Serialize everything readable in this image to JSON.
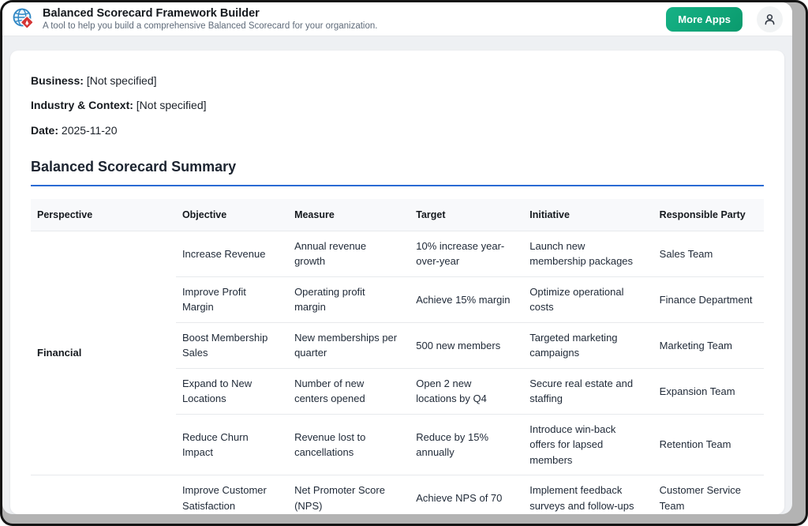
{
  "header": {
    "title": "Balanced Scorecard Framework Builder",
    "subtitle": "A tool to help you build a comprehensive Balanced Scorecard for your organization.",
    "more_apps_label": "More Apps"
  },
  "meta": {
    "business_label": "Business:",
    "business_value": "[Not specified]",
    "industry_label": "Industry & Context:",
    "industry_value": "[Not specified]",
    "date_label": "Date:",
    "date_value": "2025-11-20"
  },
  "summary": {
    "heading": "Balanced Scorecard Summary",
    "accent_color": "#2a6bd4"
  },
  "table": {
    "columns": [
      "Perspective",
      "Objective",
      "Measure",
      "Target",
      "Initiative",
      "Responsible Party"
    ],
    "groups": [
      {
        "perspective": "Financial",
        "rows": [
          [
            "Increase Revenue",
            "Annual revenue growth",
            "10% increase year-over-year",
            "Launch new membership packages",
            "Sales Team"
          ],
          [
            "Improve Profit Margin",
            "Operating profit margin",
            "Achieve 15% margin",
            "Optimize operational costs",
            "Finance Department"
          ],
          [
            "Boost Membership Sales",
            "New memberships per quarter",
            "500 new members",
            "Targeted marketing campaigns",
            "Marketing Team"
          ],
          [
            "Expand to New Locations",
            "Number of new centers opened",
            "Open 2 new locations by Q4",
            "Secure real estate and staffing",
            "Expansion Team"
          ],
          [
            "Reduce Churn Impact",
            "Revenue lost to cancellations",
            "Reduce by 15% annually",
            "Introduce win-back offers for lapsed members",
            "Retention Team"
          ]
        ]
      },
      {
        "perspective": "",
        "rows": [
          [
            "Improve Customer Satisfaction",
            "Net Promoter Score (NPS)",
            "Achieve NPS of 70",
            "Implement feedback surveys and follow-ups",
            "Customer Service Team"
          ]
        ]
      }
    ]
  },
  "colors": {
    "button_green_start": "#16b286",
    "button_green_end": "#0a9a6d",
    "heading_accent": "#2a6bd4",
    "table_header_bg": "#f8f9fb",
    "row_border": "#e7e9ec"
  }
}
